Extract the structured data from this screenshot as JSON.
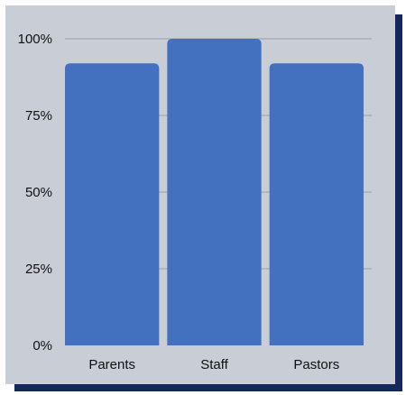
{
  "chart_data": {
    "type": "bar",
    "categories": [
      "Parents",
      "Staff",
      "Pastors"
    ],
    "values": [
      92,
      100,
      92
    ],
    "title": "",
    "xlabel": "",
    "ylabel": "",
    "ylim": [
      0,
      100
    ],
    "yticks": [
      0,
      25,
      50,
      75,
      100
    ],
    "ytick_labels": [
      "0%",
      "25%",
      "50%",
      "75%",
      "100%"
    ],
    "grid": true,
    "legend": "none",
    "colors": {
      "bar": "#4470c0",
      "panel": "#c8cdd6",
      "shadow": "#14285e",
      "gridline": "#9aa0a8"
    }
  }
}
